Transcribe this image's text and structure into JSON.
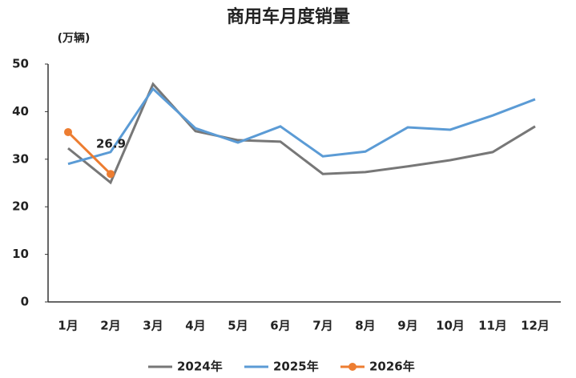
{
  "chart_data": {
    "type": "line",
    "title": "商用车月度销量",
    "y_label": "(万辆)",
    "categories": [
      "1月",
      "2月",
      "3月",
      "4月",
      "5月",
      "6月",
      "7月",
      "8月",
      "9月",
      "10月",
      "11月",
      "12月"
    ],
    "series": [
      {
        "name": "2024年",
        "color": "#777777",
        "values": [
          32.3,
          25.1,
          45.8,
          35.9,
          34,
          33.7,
          26.9,
          27.3,
          28.5,
          29.8,
          31.5,
          36.9
        ]
      },
      {
        "name": "2025年",
        "color": "#5b9bd5",
        "values": [
          29,
          31.5,
          44.8,
          36.5,
          33.5,
          36.9,
          30.6,
          31.6,
          36.7,
          36.2,
          39.2,
          42.6
        ]
      },
      {
        "name": "2026年",
        "color": "#ed7d31",
        "values": [
          35.7,
          26.9,
          null,
          null,
          null,
          null,
          null,
          null,
          null,
          null,
          null,
          null
        ],
        "markers": true,
        "labeled_index": 1
      }
    ],
    "ylim": [
      0,
      50
    ],
    "yticks": [
      0,
      10,
      20,
      30,
      40,
      50
    ],
    "grid": false
  }
}
